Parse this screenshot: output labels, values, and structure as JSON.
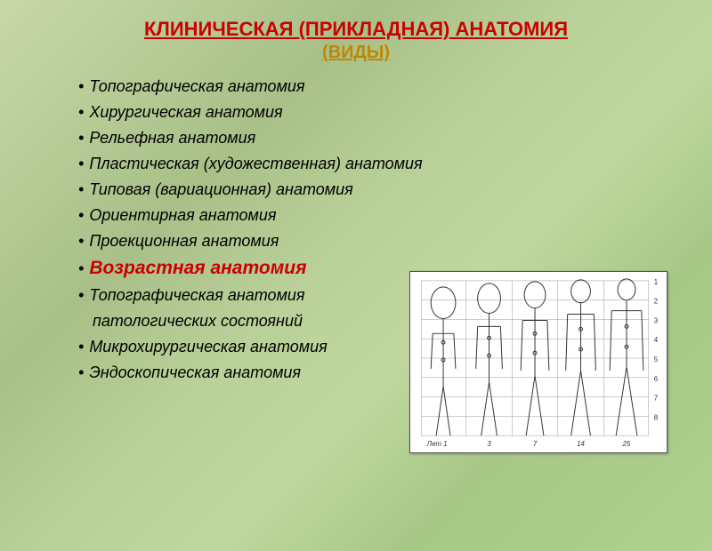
{
  "title_main": "КЛИНИЧЕСКАЯ  (ПРИКЛАДНАЯ)  АНАТОМИЯ",
  "title_sub": "(ВИДЫ)",
  "items": [
    {
      "text": "Топографическая анатомия",
      "hl": false
    },
    {
      "text": "Хирургическая анатомия",
      "hl": false
    },
    {
      "text": "Рельефная анатомия",
      "hl": false
    },
    {
      "text": "Пластическая (художественная) анатомия",
      "hl": false
    },
    {
      "text": "Типовая (вариационная) анатомия",
      "hl": false
    },
    {
      "text": "Ориентирная анатомия",
      "hl": false
    },
    {
      "text": "Проекционная анатомия",
      "hl": false
    },
    {
      "text": "Возрастная анатомия",
      "hl": true
    },
    {
      "text": "Топографическая анатомия",
      "hl": false,
      "sub": "патологических состояний"
    },
    {
      "text": "Микрохирургическая анатомия",
      "hl": false
    },
    {
      "text": "Эндоскопическая анатомия",
      "hl": false
    }
  ],
  "colors": {
    "title_main": "#cc0000",
    "title_sub": "#c08800",
    "text": "#000000",
    "highlight": "#cc0000",
    "figure_bg": "#ffffff",
    "figure_line": "#444444",
    "grid_line": "#888888"
  },
  "typography": {
    "title_fontsize": 22,
    "subtitle_fontsize": 20,
    "item_fontsize": 18,
    "highlight_fontsize": 21,
    "font_family": "Arial",
    "list_style": "italic"
  },
  "figure": {
    "type": "infographic",
    "description": "Age-related body proportions chart: five human figures at different ages on a grid",
    "grid_rows": 8,
    "grid_cols_visible": true,
    "figures_count": 5,
    "x_labels": [
      "Лет 1",
      "3",
      "7",
      "14",
      "25"
    ],
    "y_labels": [
      "1",
      "2",
      "3",
      "4",
      "5",
      "6",
      "7",
      "8"
    ],
    "background_color": "#ffffff",
    "line_color": "#444444",
    "grid_color": "#999999"
  }
}
